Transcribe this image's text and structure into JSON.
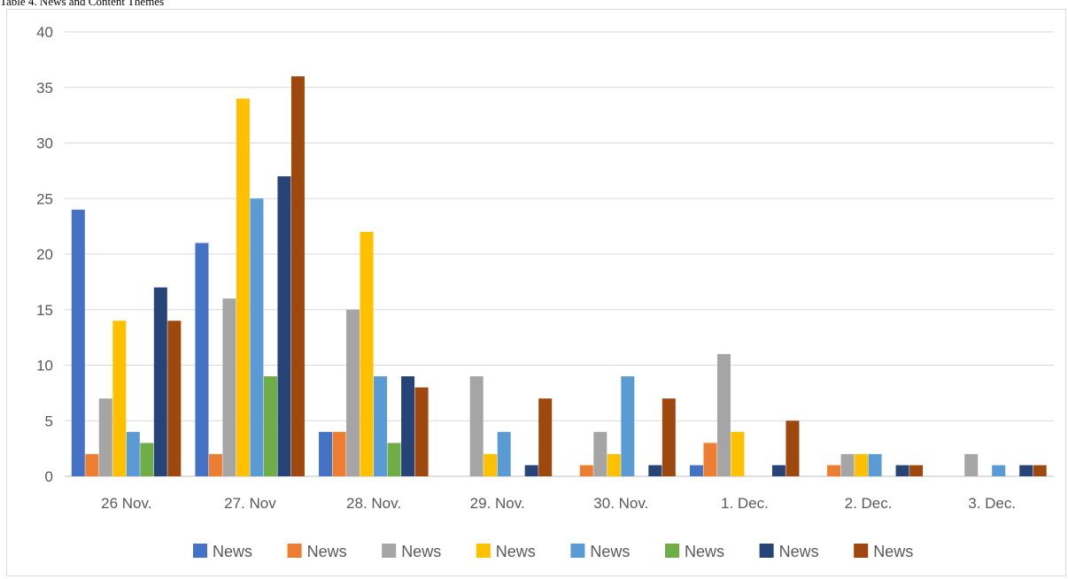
{
  "caption": "Table 4. News and Content Themes",
  "chart_data": {
    "type": "bar",
    "categories": [
      "26 Nov.",
      "27. Nov",
      "28. Nov.",
      "29. Nov.",
      "30. Nov.",
      "1. Dec.",
      "2. Dec.",
      "3. Dec."
    ],
    "ylim": [
      0,
      40
    ],
    "yticks": [
      0,
      5,
      10,
      15,
      20,
      25,
      30,
      35,
      40
    ],
    "grid": true,
    "legend_position": "bottom",
    "series": [
      {
        "name": "News",
        "color": "#4472C4",
        "values": [
          24,
          21,
          4,
          0,
          0,
          1,
          0,
          0
        ]
      },
      {
        "name": "News",
        "color": "#ED7D31",
        "values": [
          2,
          2,
          4,
          0,
          1,
          3,
          1,
          0
        ]
      },
      {
        "name": "News",
        "color": "#A5A5A5",
        "values": [
          7,
          16,
          15,
          9,
          4,
          11,
          2,
          2
        ]
      },
      {
        "name": "News",
        "color": "#FFC000",
        "values": [
          14,
          34,
          22,
          2,
          2,
          4,
          2,
          0
        ]
      },
      {
        "name": "News",
        "color": "#5B9BD5",
        "values": [
          4,
          25,
          9,
          4,
          9,
          0,
          2,
          1
        ]
      },
      {
        "name": "News",
        "color": "#70AD47",
        "values": [
          3,
          9,
          3,
          0,
          0,
          0,
          0,
          0
        ]
      },
      {
        "name": "News",
        "color": "#264478",
        "values": [
          17,
          27,
          9,
          1,
          1,
          1,
          1,
          1
        ]
      },
      {
        "name": "News",
        "color": "#9E480E",
        "values": [
          14,
          36,
          8,
          7,
          7,
          5,
          1,
          1
        ]
      }
    ]
  }
}
